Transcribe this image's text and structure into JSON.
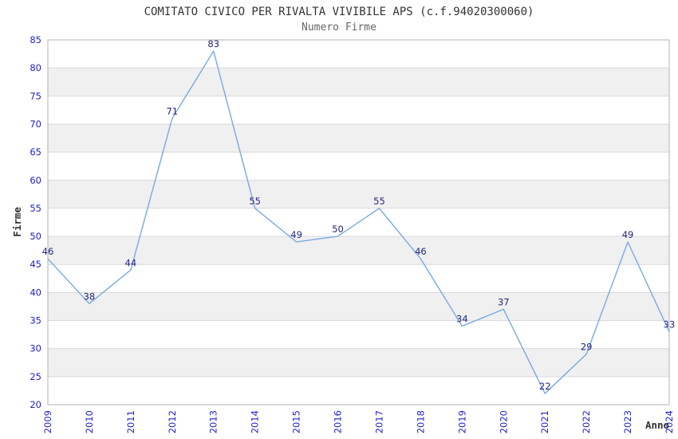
{
  "chart_data": {
    "type": "line",
    "title": "COMITATO CIVICO PER RIVALTA VIVIBILE APS (c.f.94020300060)",
    "subtitle": "Numero Firme",
    "xlabel": "Anno",
    "ylabel": "Firme",
    "categories": [
      "2009",
      "2010",
      "2011",
      "2012",
      "2013",
      "2014",
      "2015",
      "2016",
      "2017",
      "2018",
      "2019",
      "2020",
      "2021",
      "2022",
      "2023",
      "2024"
    ],
    "values": [
      46,
      38,
      44,
      71,
      83,
      55,
      49,
      50,
      55,
      46,
      34,
      37,
      22,
      29,
      49,
      33
    ],
    "ylim": [
      20,
      85
    ],
    "ytick_step": 5,
    "yticks": [
      20,
      25,
      30,
      35,
      40,
      45,
      50,
      55,
      60,
      65,
      70,
      75,
      80,
      85
    ],
    "grid": "horizontal",
    "banded_background": true,
    "legend": "none",
    "point_labels_visible": true,
    "colors": {
      "line": "#79a9e2",
      "tick_label": "#2222cc",
      "point_label": "#26267f",
      "title": "#333333",
      "subtitle": "#666666",
      "axis_title": "#333333",
      "band": "#f0f0f0",
      "gridline": "#d9d9d9",
      "border": "#b3b3b3",
      "background": "#ffffff"
    }
  }
}
